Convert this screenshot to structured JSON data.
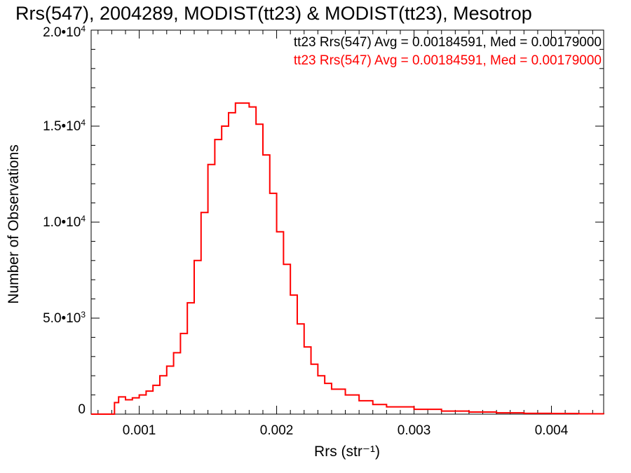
{
  "title": "Rrs(547), 2004289, MODIST(tt23) & MODIST(tt23), Mesotrop",
  "legend": {
    "line1": "tt23 Rrs(547) Avg = 0.00184591, Med = 0.00179000",
    "line2": "tt23 Rrs(547) Avg = 0.00184591, Med = 0.00179000",
    "line1_color": "#000000",
    "line2_color": "#ff0000"
  },
  "chart_data": {
    "type": "histogram",
    "title": "Rrs(547), 2004289, MODIST(tt23) & MODIST(tt23), Mesotrop",
    "xlabel": "Rrs (str⁻¹)",
    "ylabel": "Number of Observations",
    "xlim": [
      0.00065,
      0.00438
    ],
    "ylim": [
      0,
      20000
    ],
    "x_ticks": [
      0.001,
      0.002,
      0.003,
      0.004
    ],
    "x_tick_labels": [
      "0.001",
      "0.002",
      "0.003",
      "0.004"
    ],
    "y_ticks": [
      0,
      5000,
      10000,
      15000,
      20000
    ],
    "y_tick_labels": [
      {
        "mant": "0",
        "exp": ""
      },
      {
        "mant": "5.0•10",
        "exp": "3"
      },
      {
        "mant": "1.0•10",
        "exp": "4"
      },
      {
        "mant": "1.5•10",
        "exp": "4"
      },
      {
        "mant": "2.0•10",
        "exp": "4"
      }
    ],
    "series": [
      {
        "name": "tt23 Rrs(547) Avg = 0.00184591, Med = 0.00179000",
        "color": "#ff0000",
        "x": [
          0.00065,
          0.0007,
          0.00075,
          0.0008,
          0.00082,
          0.00085,
          0.0009,
          0.00095,
          0.001,
          0.00105,
          0.0011,
          0.00115,
          0.0012,
          0.00125,
          0.0013,
          0.00135,
          0.0014,
          0.00145,
          0.0015,
          0.00155,
          0.0016,
          0.00165,
          0.0017,
          0.00175,
          0.0018,
          0.00185,
          0.0019,
          0.00195,
          0.002,
          0.00205,
          0.0021,
          0.00215,
          0.0022,
          0.00225,
          0.0023,
          0.00235,
          0.0024,
          0.0025,
          0.0026,
          0.0027,
          0.0028,
          0.003,
          0.0032,
          0.0034,
          0.0036,
          0.0038,
          0.004,
          0.0042,
          0.00438
        ],
        "y": [
          0,
          0,
          0,
          0,
          600,
          900,
          750,
          850,
          1000,
          1200,
          1500,
          2000,
          2500,
          3200,
          4200,
          5800,
          8000,
          10500,
          13000,
          14300,
          15000,
          15700,
          16200,
          16200,
          16000,
          15100,
          13500,
          11500,
          9500,
          7800,
          6200,
          4700,
          3500,
          2600,
          2000,
          1600,
          1300,
          1000,
          700,
          500,
          380,
          250,
          160,
          110,
          70,
          40,
          30,
          20,
          0
        ]
      }
    ]
  }
}
